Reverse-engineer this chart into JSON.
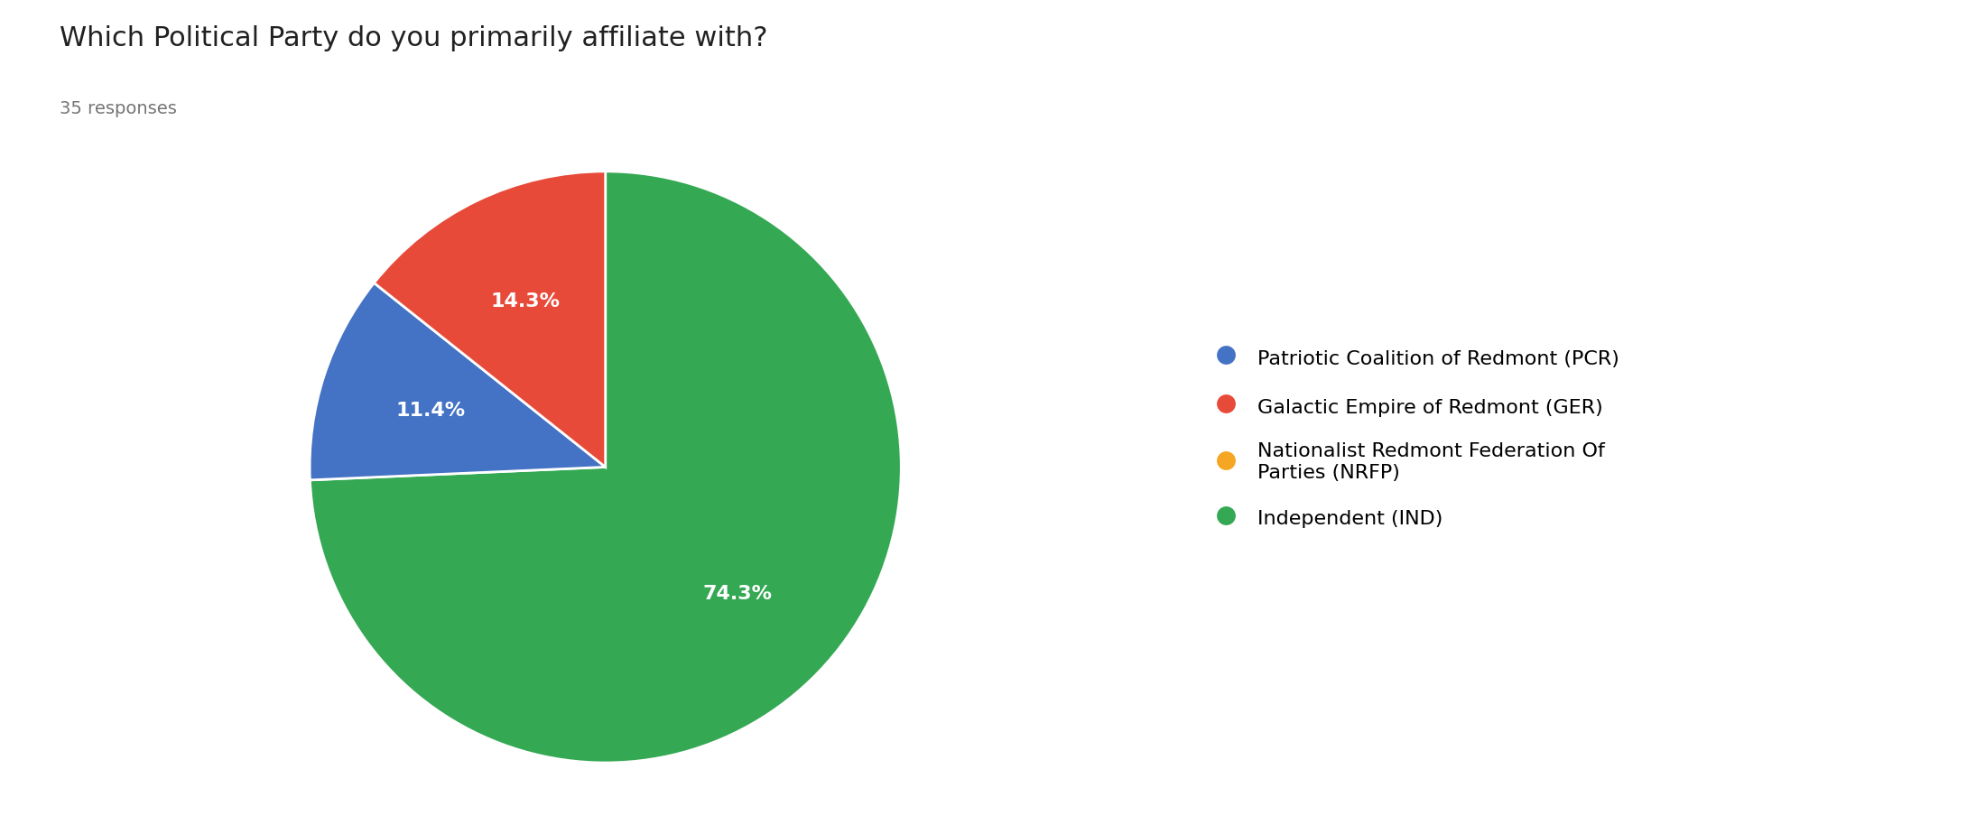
{
  "title": "Which Political Party do you primarily affiliate with?",
  "subtitle": "35 responses",
  "legend_labels": [
    "Patriotic Coalition of Redmont (PCR)",
    "Galactic Empire of Redmont (GER)",
    "Nationalist Redmont Federation Of\nParties (NRFP)",
    "Independent (IND)"
  ],
  "values": [
    11.4,
    14.3,
    0.0,
    74.3
  ],
  "colors": [
    "#4472c4",
    "#e84a3a",
    "#f5a623",
    "#34a853"
  ],
  "pct_labels": [
    "11.4%",
    "14.3%",
    "",
    "74.3%"
  ],
  "background_color": "#ffffff",
  "title_fontsize": 22,
  "subtitle_fontsize": 14,
  "label_fontsize": 16,
  "legend_fontsize": 16
}
